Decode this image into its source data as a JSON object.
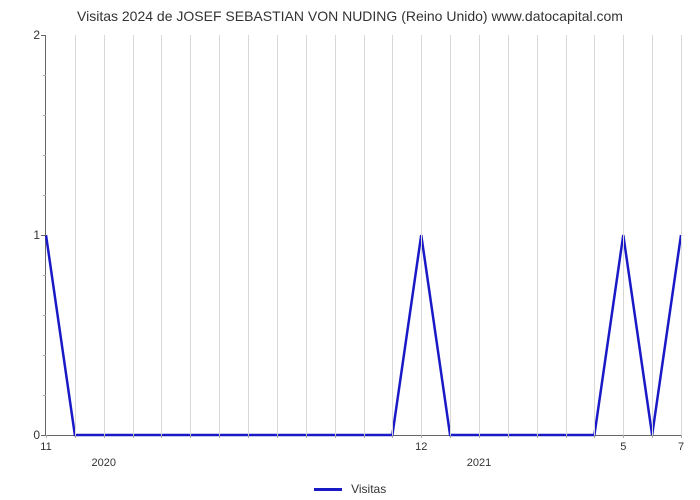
{
  "chart": {
    "type": "line",
    "title": "Visitas 2024 de JOSEF SEBASTIAN VON NUDING (Reino Unido) www.datocapital.com",
    "title_fontsize": 14,
    "background_color": "#ffffff",
    "grid_color": "#d8d8d8",
    "axis_color": "#666666",
    "text_color": "#333333",
    "line_color": "#1919c8",
    "line_width": 2.5,
    "y_axis": {
      "min": 0,
      "max": 2,
      "major_ticks": [
        0,
        1,
        2
      ],
      "minor_steps": 4
    },
    "x_axis": {
      "count": 23,
      "major_labels": [
        {
          "index": 0,
          "label": "11"
        },
        {
          "index": 13,
          "label": "12"
        },
        {
          "index": 20,
          "label": "5"
        },
        {
          "index": 22,
          "label": "7"
        }
      ],
      "year_labels": [
        {
          "index": 2,
          "label": "2020"
        },
        {
          "index": 15,
          "label": "2021"
        }
      ]
    },
    "values": [
      1,
      0,
      0,
      0,
      0,
      0,
      0,
      0,
      0,
      0,
      0,
      0,
      0,
      1,
      0,
      0,
      0,
      0,
      0,
      0,
      1,
      0,
      1
    ],
    "legend": {
      "label": "Visitas"
    }
  }
}
